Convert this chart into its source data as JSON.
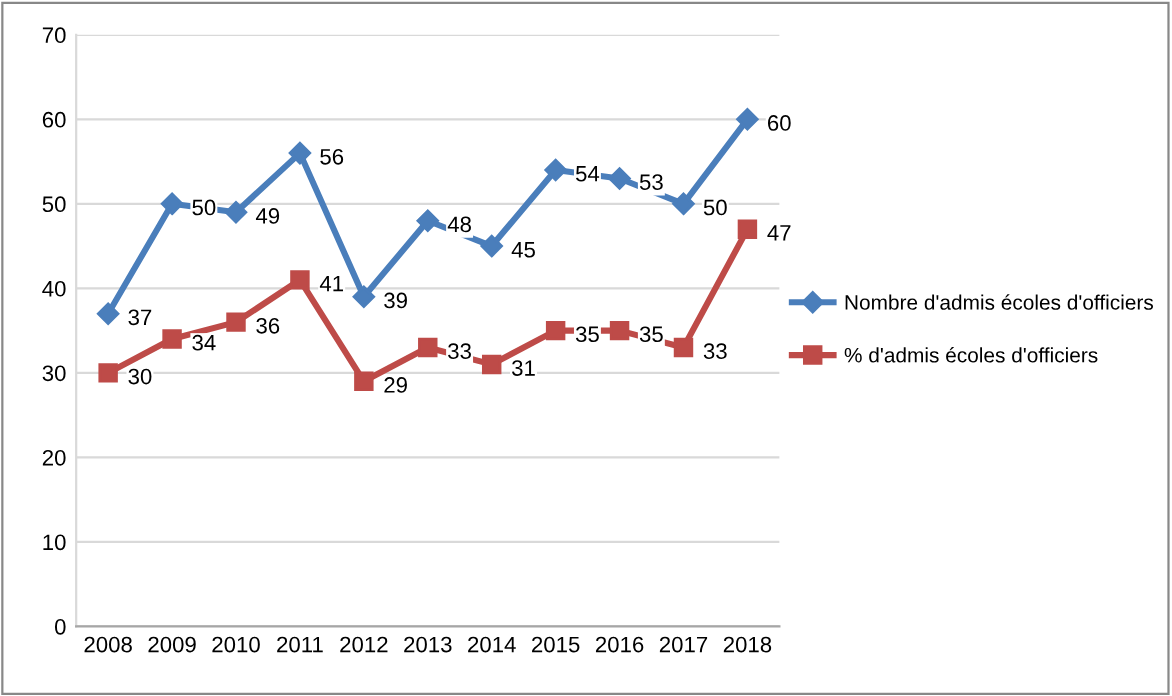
{
  "chart_data": {
    "type": "line",
    "categories": [
      "2008",
      "2009",
      "2010",
      "2011",
      "2012",
      "2013",
      "2014",
      "2015",
      "2016",
      "2017",
      "2018"
    ],
    "series": [
      {
        "name": "Nombre d'admis écoles d'officiers",
        "color": "#4a7ebb",
        "marker": "diamond",
        "values": [
          37,
          50,
          49,
          56,
          39,
          48,
          45,
          54,
          53,
          50,
          60
        ]
      },
      {
        "name": "% d'admis écoles d'officiers",
        "color": "#be4b48",
        "marker": "square",
        "values": [
          30,
          34,
          36,
          41,
          29,
          33,
          31,
          35,
          35,
          33,
          47
        ]
      }
    ],
    "ylim": [
      0,
      70
    ],
    "yticks": [
      0,
      10,
      20,
      30,
      40,
      50,
      60,
      70
    ],
    "grid": "y",
    "legend": "right",
    "data_labels": true,
    "line_style": "solid"
  }
}
